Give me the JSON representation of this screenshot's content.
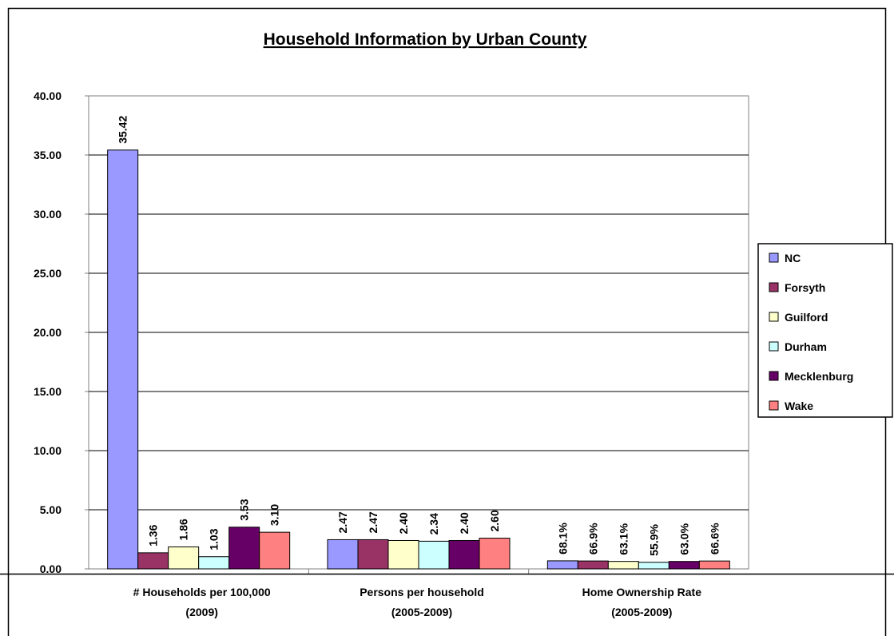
{
  "chart_data": {
    "type": "bar",
    "title": "Household Information by Urban County",
    "categories": [
      [
        "# Households per 100,000",
        "(2009)"
      ],
      [
        "Persons per household",
        "(2005-2009)"
      ],
      [
        "Home Ownership Rate",
        "(2005-2009)"
      ]
    ],
    "yticks": [
      "0.00",
      "5.00",
      "10.00",
      "15.00",
      "20.00",
      "25.00",
      "30.00",
      "35.00",
      "40.00"
    ],
    "ylim": [
      0,
      40
    ],
    "grid": true,
    "legend_position": "right",
    "series": [
      {
        "name": "NC",
        "color": "#9999FF",
        "values": [
          35.42,
          2.47,
          0.681
        ],
        "labels": [
          "35.42",
          "2.47",
          "68.1%"
        ]
      },
      {
        "name": "Forsyth",
        "color": "#993366",
        "values": [
          1.36,
          2.47,
          0.669
        ],
        "labels": [
          "1.36",
          "2.47",
          "66.9%"
        ]
      },
      {
        "name": "Guilford",
        "color": "#FFFFCC",
        "values": [
          1.86,
          2.4,
          0.631
        ],
        "labels": [
          "1.86",
          "2.40",
          "63.1%"
        ]
      },
      {
        "name": "Durham",
        "color": "#CCFFFF",
        "values": [
          1.03,
          2.34,
          0.559
        ],
        "labels": [
          "1.03",
          "2.34",
          "55.9%"
        ]
      },
      {
        "name": "Mecklenburg",
        "color": "#660066",
        "values": [
          3.53,
          2.4,
          0.63
        ],
        "labels": [
          "3.53",
          "2.40",
          "63.0%"
        ]
      },
      {
        "name": "Wake",
        "color": "#FF8080",
        "values": [
          3.1,
          2.6,
          0.666
        ],
        "labels": [
          "3.10",
          "2.60",
          "66.6%"
        ]
      }
    ]
  }
}
